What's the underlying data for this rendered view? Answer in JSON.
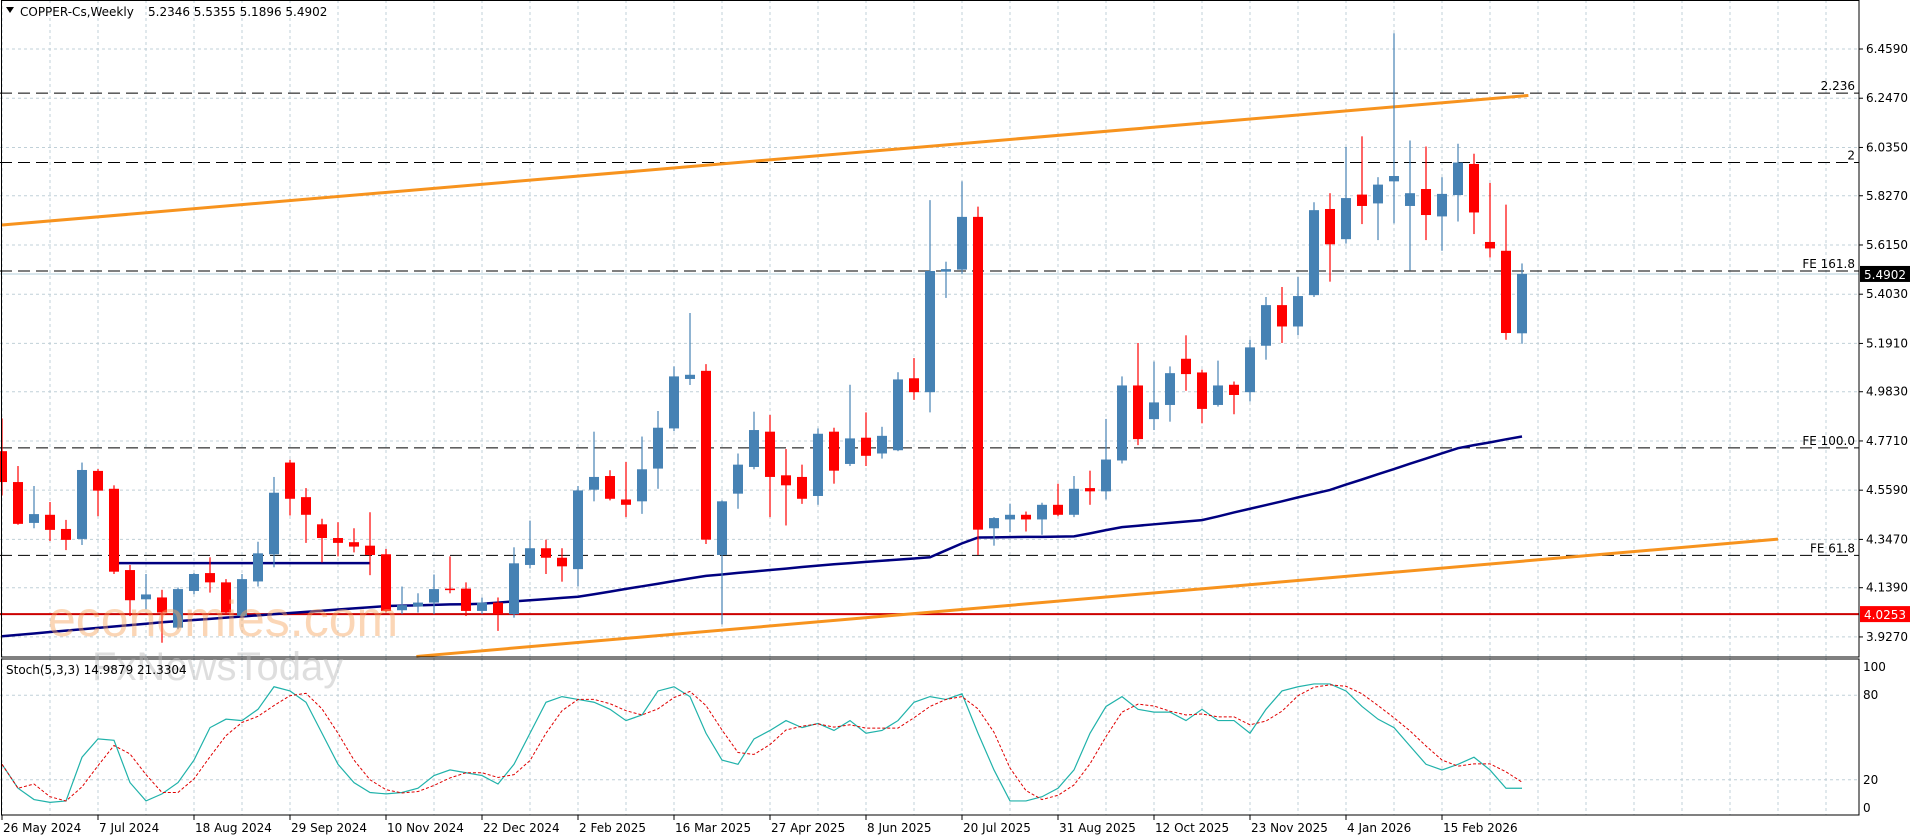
{
  "header": {
    "symbol_label": "COPPER-Cs,Weekly",
    "ohlc_text": "5.2346 5.5355 5.1896 5.4902",
    "collapse_icon": "triangle-down-icon"
  },
  "stoch_header": "Stoch(5,3,3) 14.9879 21.3304",
  "watermark": {
    "line1": "economies.com",
    "line2": "FxNewsToday"
  },
  "colors": {
    "bull": "#4682B4",
    "bear": "#FF0000",
    "ma": "#000080",
    "channel": "#F7931E",
    "support": "#CC0000",
    "stoch_k": "#20B2AA",
    "stoch_d": "#E00000",
    "grid": "#C0D0D8"
  },
  "chart_data": {
    "type": "candlestick",
    "title": "COPPER-Cs,Weekly",
    "timeframe": "weekly",
    "first_week": "26 May 2024",
    "x_tick_labels": [
      "26 May 2024",
      "7 Jul 2024",
      "18 Aug 2024",
      "29 Sep 2024",
      "10 Nov 2024",
      "22 Dec 2024",
      "2 Feb 2025",
      "16 Mar 2025",
      "27 Apr 2025",
      "8 Jun 2025",
      "20 Jul 2025",
      "31 Aug 2025",
      "12 Oct 2025",
      "23 Nov 2025",
      "4 Jan 2026",
      "15 Feb 2026"
    ],
    "y_tick_labels": [
      "6.4590",
      "6.2470",
      "6.0350",
      "5.8270",
      "5.6150",
      "5.4030",
      "5.1910",
      "4.9830",
      "4.7710",
      "4.5590",
      "4.3470",
      "4.1390",
      "3.9270"
    ],
    "ylim": [
      3.86,
      6.67
    ],
    "grid": true,
    "ohlc_fields": [
      "open",
      "high",
      "low",
      "close"
    ],
    "candles": [
      [
        4.727,
        4.868,
        4.536,
        4.594
      ],
      [
        4.594,
        4.663,
        4.41,
        4.414
      ],
      [
        4.418,
        4.577,
        4.395,
        4.456
      ],
      [
        4.453,
        4.508,
        4.34,
        4.388
      ],
      [
        4.392,
        4.431,
        4.301,
        4.345
      ],
      [
        4.349,
        4.678,
        4.323,
        4.646
      ],
      [
        4.642,
        4.65,
        4.447,
        4.557
      ],
      [
        4.565,
        4.58,
        4.198,
        4.208
      ],
      [
        4.215,
        4.237,
        4.017,
        4.085
      ],
      [
        4.089,
        4.198,
        4.046,
        4.11
      ],
      [
        4.097,
        4.13,
        3.902,
        4.032
      ],
      [
        3.967,
        4.14,
        3.96,
        4.133
      ],
      [
        4.125,
        4.202,
        4.111,
        4.198
      ],
      [
        4.202,
        4.27,
        4.118,
        4.162
      ],
      [
        4.162,
        4.176,
        4.025,
        4.032
      ],
      [
        4.017,
        4.198,
        4.01,
        4.176
      ],
      [
        4.166,
        4.337,
        4.144,
        4.287
      ],
      [
        4.283,
        4.616,
        4.227,
        4.548
      ],
      [
        4.678,
        4.69,
        4.45,
        4.522
      ],
      [
        4.529,
        4.568,
        4.332,
        4.453
      ],
      [
        4.412,
        4.436,
        4.248,
        4.353
      ],
      [
        4.353,
        4.421,
        4.274,
        4.332
      ],
      [
        4.335,
        4.395,
        4.291,
        4.316
      ],
      [
        4.32,
        4.464,
        4.193,
        4.28
      ],
      [
        4.283,
        4.306,
        4.032,
        4.039
      ],
      [
        4.042,
        4.144,
        4.025,
        4.064
      ],
      [
        4.058,
        4.115,
        4.032,
        4.075
      ],
      [
        4.075,
        4.196,
        4.025,
        4.133
      ],
      [
        4.135,
        4.274,
        4.115,
        4.13
      ],
      [
        4.135,
        4.162,
        4.017,
        4.039
      ],
      [
        4.039,
        4.097,
        4.025,
        4.075
      ],
      [
        4.075,
        4.097,
        3.953,
        4.025
      ],
      [
        4.025,
        4.313,
        4.01,
        4.244
      ],
      [
        4.237,
        4.428,
        4.222,
        4.309
      ],
      [
        4.309,
        4.346,
        4.198,
        4.268
      ],
      [
        4.268,
        4.309,
        4.165,
        4.231
      ],
      [
        4.219,
        4.577,
        4.144,
        4.558
      ],
      [
        4.561,
        4.811,
        4.511,
        4.616
      ],
      [
        4.62,
        4.645,
        4.515,
        4.522
      ],
      [
        4.519,
        4.681,
        4.443,
        4.496
      ],
      [
        4.511,
        4.79,
        4.457,
        4.649
      ],
      [
        4.652,
        4.9,
        4.565,
        4.828
      ],
      [
        4.825,
        5.092,
        4.813,
        5.049
      ],
      [
        5.038,
        5.322,
        5.012,
        5.056
      ],
      [
        5.073,
        5.102,
        4.327,
        4.346
      ],
      [
        4.28,
        4.515,
        3.981,
        4.511
      ],
      [
        4.544,
        4.717,
        4.479,
        4.669
      ],
      [
        4.659,
        4.897,
        4.649,
        4.818
      ],
      [
        4.811,
        4.883,
        4.443,
        4.616
      ],
      [
        4.623,
        4.736,
        4.407,
        4.58
      ],
      [
        4.616,
        4.669,
        4.5,
        4.522
      ],
      [
        4.534,
        4.825,
        4.496,
        4.802
      ],
      [
        4.811,
        4.828,
        4.587,
        4.643
      ],
      [
        4.672,
        5.013,
        4.663,
        4.782
      ],
      [
        4.785,
        4.894,
        4.663,
        4.707
      ],
      [
        4.717,
        4.832,
        4.695,
        4.793
      ],
      [
        4.731,
        5.067,
        4.727,
        5.036
      ],
      [
        5.041,
        5.128,
        4.948,
        4.981
      ],
      [
        4.981,
        5.808,
        4.894,
        5.503
      ],
      [
        5.5,
        5.543,
        5.387,
        5.511
      ],
      [
        5.509,
        5.889,
        5.491,
        5.736
      ],
      [
        5.736,
        5.78,
        4.28,
        4.389
      ],
      [
        4.395,
        4.443,
        4.32,
        4.439
      ],
      [
        4.433,
        4.501,
        4.378,
        4.453
      ],
      [
        4.453,
        4.467,
        4.381,
        4.433
      ],
      [
        4.433,
        4.505,
        4.367,
        4.496
      ],
      [
        4.496,
        4.587,
        4.447,
        4.453
      ],
      [
        4.453,
        4.62,
        4.443,
        4.565
      ],
      [
        4.568,
        4.643,
        4.496,
        4.554
      ],
      [
        4.554,
        4.866,
        4.519,
        4.691
      ],
      [
        4.687,
        5.049,
        4.674,
        5.01
      ],
      [
        5.01,
        5.193,
        4.753,
        4.779
      ],
      [
        4.865,
        5.113,
        4.818,
        4.937
      ],
      [
        4.926,
        5.092,
        4.854,
        5.063
      ],
      [
        5.125,
        5.226,
        4.987,
        5.059
      ],
      [
        5.066,
        5.078,
        4.847,
        4.909
      ],
      [
        4.926,
        5.117,
        4.919,
        5.01
      ],
      [
        5.013,
        5.027,
        4.886,
        4.969
      ],
      [
        4.981,
        5.207,
        4.941,
        5.174
      ],
      [
        5.181,
        5.391,
        5.121,
        5.356
      ],
      [
        5.356,
        5.434,
        5.193,
        5.264
      ],
      [
        5.264,
        5.477,
        5.226,
        5.395
      ],
      [
        5.399,
        5.799,
        5.391,
        5.765
      ],
      [
        5.77,
        5.838,
        5.457,
        5.618
      ],
      [
        5.64,
        6.037,
        5.621,
        5.817
      ],
      [
        5.832,
        6.083,
        5.705,
        5.783
      ],
      [
        5.794,
        5.907,
        5.636,
        5.875
      ],
      [
        5.889,
        6.527,
        5.708,
        5.912
      ],
      [
        5.783,
        6.065,
        5.506,
        5.838
      ],
      [
        5.856,
        6.039,
        5.636,
        5.744
      ],
      [
        5.738,
        5.907,
        5.59,
        5.835
      ],
      [
        5.83,
        6.051,
        5.716,
        5.97
      ],
      [
        5.964,
        6.008,
        5.662,
        5.755
      ],
      [
        5.628,
        5.882,
        5.561,
        5.6
      ],
      [
        5.59,
        5.789,
        5.207,
        5.236
      ],
      [
        5.2346,
        5.5355,
        5.1896,
        5.4902
      ]
    ],
    "moving_average": [
      3.93,
      3.936,
      3.942,
      3.948,
      3.954,
      3.96,
      3.966,
      3.972,
      3.978,
      3.984,
      3.99,
      3.995,
      4.0,
      4.005,
      4.01,
      4.015,
      4.02,
      4.025,
      4.03,
      4.035,
      4.04,
      4.045,
      4.05,
      4.055,
      4.06,
      4.062,
      4.063,
      4.065,
      4.067,
      4.068,
      4.07,
      4.075,
      4.08,
      4.085,
      4.09,
      4.095,
      4.1,
      4.111,
      4.122,
      4.134,
      4.145,
      4.156,
      4.168,
      4.179,
      4.19,
      4.196,
      4.203,
      4.209,
      4.215,
      4.221,
      4.228,
      4.234,
      4.24,
      4.245,
      4.25,
      4.255,
      4.26,
      4.265,
      4.27,
      4.3,
      4.33,
      4.355,
      4.356,
      4.357,
      4.358,
      4.358,
      4.359,
      4.36,
      4.373,
      4.387,
      4.4,
      4.406,
      4.412,
      4.418,
      4.424,
      4.43,
      4.446,
      4.463,
      4.479,
      4.495,
      4.511,
      4.528,
      4.544,
      4.56,
      4.583,
      4.605,
      4.628,
      4.65,
      4.673,
      4.695,
      4.718,
      4.74,
      4.753,
      4.765,
      4.778,
      4.79
    ],
    "horizontal_trendline": {
      "price": 4.245,
      "from_week": 7,
      "to_week": 23
    },
    "channel_upper": {
      "from": {
        "week": 0,
        "price": 5.701
      },
      "to": {
        "week": 95.4,
        "price": 6.259
      }
    },
    "channel_lower": {
      "from": {
        "week": 25.9,
        "price": 3.843
      },
      "to": {
        "week": 111,
        "price": 4.348
      }
    },
    "levels": [
      {
        "label": "2.236",
        "price": 6.269
      },
      {
        "label": "2",
        "price": 5.97
      },
      {
        "label": "FE 161.8",
        "price": 5.503
      },
      {
        "label": "FE 100.0",
        "price": 4.741
      },
      {
        "label": "FE 61.8",
        "price": 4.278
      }
    ],
    "support_line": {
      "price": 4.0253,
      "label": "4.0253"
    },
    "current_price": {
      "price": 5.4902,
      "label": "5.4902"
    },
    "stochastic": {
      "params": "5,3,3",
      "y_tick_labels": [
        "100",
        "80",
        "20",
        "0"
      ],
      "ylim": [
        0,
        100
      ],
      "k": [
        31,
        14,
        6,
        4,
        5,
        36,
        49,
        48,
        18,
        5,
        10,
        18,
        34,
        57,
        63,
        62,
        70,
        86,
        83,
        75,
        53,
        31,
        18,
        11,
        10,
        11,
        14,
        23,
        27,
        25,
        23,
        17,
        31,
        53,
        75,
        79,
        77,
        75,
        70,
        62,
        66,
        83,
        86,
        79,
        53,
        34,
        31,
        49,
        55,
        62,
        57,
        60,
        55,
        62,
        53,
        55,
        62,
        75,
        79,
        77,
        81,
        53,
        27,
        5,
        5,
        8,
        14,
        27,
        53,
        72,
        79,
        70,
        68,
        68,
        62,
        70,
        62,
        62,
        53,
        70,
        83,
        86,
        88,
        88,
        83,
        72,
        63,
        57,
        44,
        31,
        27,
        31,
        36,
        27,
        14,
        14
      ]
    }
  }
}
